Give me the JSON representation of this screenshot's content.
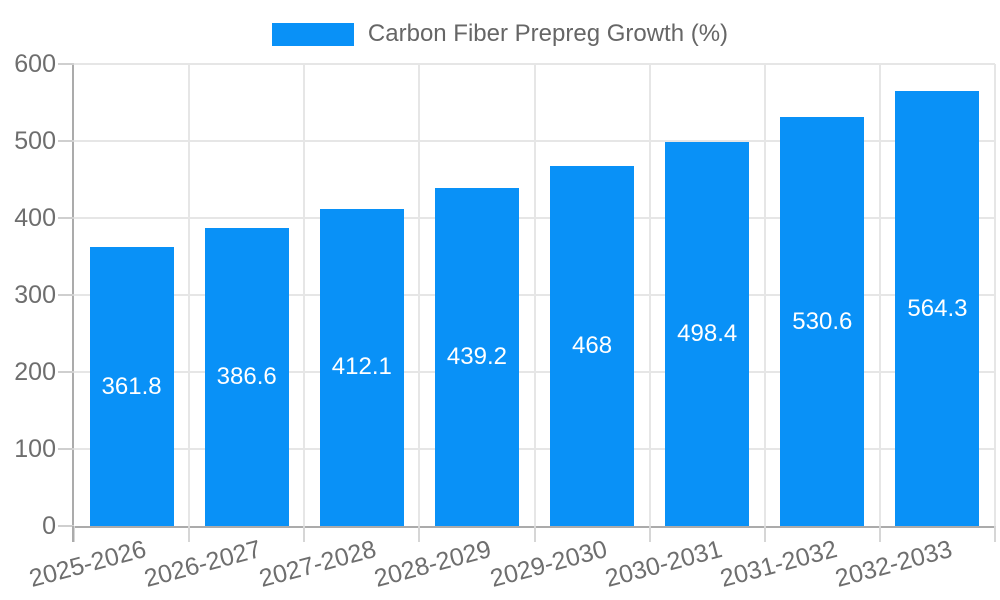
{
  "legend": {
    "label": "Carbon Fiber Prepreg Growth (%)"
  },
  "chart_data": {
    "type": "bar",
    "title": "Carbon Fiber Prepreg Growth (%)",
    "series_name": "Carbon Fiber Prepreg Growth (%)",
    "categories": [
      "2025-2026",
      "2026-2027",
      "2027-2028",
      "2028-2029",
      "2029-2030",
      "2030-2031",
      "2031-2032",
      "2032-2033"
    ],
    "values": [
      361.8,
      386.6,
      412.1,
      439.2,
      468,
      498.4,
      530.6,
      564.3
    ],
    "value_labels": [
      "361.8",
      "386.6",
      "412.1",
      "439.2",
      "468",
      "498.4",
      "530.6",
      "564.3"
    ],
    "xlabel": "",
    "ylabel": "",
    "ylim": [
      0,
      600
    ],
    "yticks": [
      0,
      100,
      200,
      300,
      400,
      500,
      600
    ],
    "grid": true,
    "legend_position": "top",
    "bar_color": "#0991f7",
    "bar_label_color": "#ffffff",
    "axis_text_color": "#6e6e6e",
    "legend_text_color": "#666666",
    "gridline_color": "#e6e6e6",
    "axis_line_color": "#ababab",
    "background_color": "#ffffff"
  }
}
